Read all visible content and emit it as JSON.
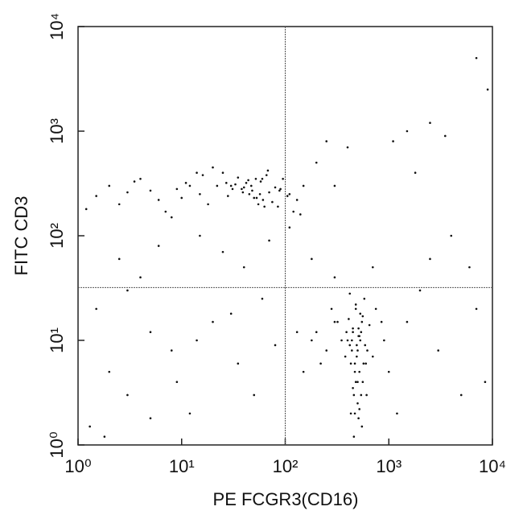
{
  "chart_data": {
    "type": "scatter",
    "xlabel": "PE FCGR3(CD16)",
    "ylabel": "FITC CD3",
    "xscale": "log",
    "yscale": "log",
    "xlim": [
      1,
      10000
    ],
    "ylim": [
      1,
      10000
    ],
    "xticks": [
      {
        "value": 1,
        "label": "10⁰"
      },
      {
        "value": 10,
        "label": "10¹"
      },
      {
        "value": 100,
        "label": "10²"
      },
      {
        "value": 1000,
        "label": "10³"
      },
      {
        "value": 10000,
        "label": "10⁴"
      }
    ],
    "yticks": [
      {
        "value": 1,
        "label": "10⁰"
      },
      {
        "value": 10,
        "label": "10¹"
      },
      {
        "value": 100,
        "label": "10²"
      },
      {
        "value": 1000,
        "label": "10³"
      },
      {
        "value": 10000,
        "label": "10⁴"
      }
    ],
    "quadrant_x": 100,
    "quadrant_y": 32,
    "series": [
      {
        "color": "#111111",
        "x": [
          30,
          45,
          52,
          38,
          61,
          25,
          70,
          42,
          55,
          33,
          48,
          66,
          28,
          58,
          40,
          75,
          35,
          50,
          22,
          63,
          44,
          57,
          31,
          68,
          47,
          39,
          53,
          80,
          27,
          60,
          15,
          12,
          18,
          9,
          6,
          4,
          3,
          2,
          1.5,
          1.2,
          8,
          11,
          5,
          14,
          20,
          2.5,
          3.5,
          7,
          10,
          16,
          90,
          110,
          85,
          130,
          150,
          120,
          95,
          105,
          140,
          88,
          400,
          450,
          500,
          550,
          600,
          420,
          480,
          520,
          380,
          650,
          470,
          530,
          440,
          560,
          510,
          490,
          410,
          460,
          620,
          540,
          350,
          300,
          700,
          580,
          430,
          510,
          470,
          590,
          450,
          520,
          480,
          440,
          560,
          500,
          390,
          610,
          530,
          470,
          420,
          550,
          250,
          200,
          280,
          320,
          180,
          220,
          900,
          1000,
          850,
          750,
          460,
          500,
          540,
          430,
          480,
          510,
          570,
          450,
          490,
          520,
          1.5,
          2,
          3,
          5,
          8,
          12,
          20,
          35,
          60,
          150,
          2.5,
          4,
          6,
          15,
          25,
          40,
          70,
          110,
          180,
          300,
          1500,
          2000,
          3000,
          5000,
          7000,
          8500,
          1200,
          2500,
          4000,
          6000,
          200,
          250,
          300,
          400,
          1500,
          2500,
          3500,
          1.3,
          1.8,
          3,
          5,
          9,
          14,
          30,
          50,
          80,
          130,
          700,
          1100,
          1800,
          7000,
          9000
        ],
        "y": [
          300,
          250,
          350,
          280,
          220,
          400,
          260,
          320,
          200,
          310,
          270,
          380,
          240,
          330,
          290,
          210,
          360,
          230,
          300,
          190,
          340,
          250,
          280,
          420,
          300,
          260,
          230,
          290,
          320,
          350,
          250,
          300,
          200,
          280,
          220,
          350,
          260,
          300,
          240,
          180,
          150,
          320,
          270,
          400,
          450,
          200,
          330,
          170,
          230,
          380,
          280,
          250,
          190,
          220,
          300,
          170,
          350,
          240,
          160,
          270,
          10,
          12,
          8,
          15,
          6,
          9,
          20,
          11,
          7,
          14,
          5,
          18,
          10,
          4,
          13,
          9,
          16,
          3,
          8,
          12,
          10,
          15,
          7,
          25,
          6,
          11,
          2,
          9,
          13,
          5,
          22,
          8,
          17,
          4,
          12,
          3,
          10,
          6,
          28,
          1.5,
          8,
          12,
          20,
          15,
          10,
          6,
          10,
          5,
          15,
          20,
          1.2,
          2.5,
          3,
          2,
          4,
          1.8,
          6,
          3.5,
          7,
          2.2,
          20,
          5,
          3,
          12,
          8,
          2,
          15,
          6,
          25,
          5,
          60,
          40,
          80,
          100,
          70,
          50,
          90,
          120,
          60,
          40,
          15,
          30,
          8,
          3,
          20,
          4,
          2,
          60,
          100,
          50,
          500,
          800,
          300,
          700,
          1000,
          1200,
          900,
          1.5,
          1.2,
          30,
          1.8,
          4,
          10,
          18,
          3,
          9,
          12,
          50,
          800,
          400,
          5000,
          2500
        ]
      }
    ]
  }
}
